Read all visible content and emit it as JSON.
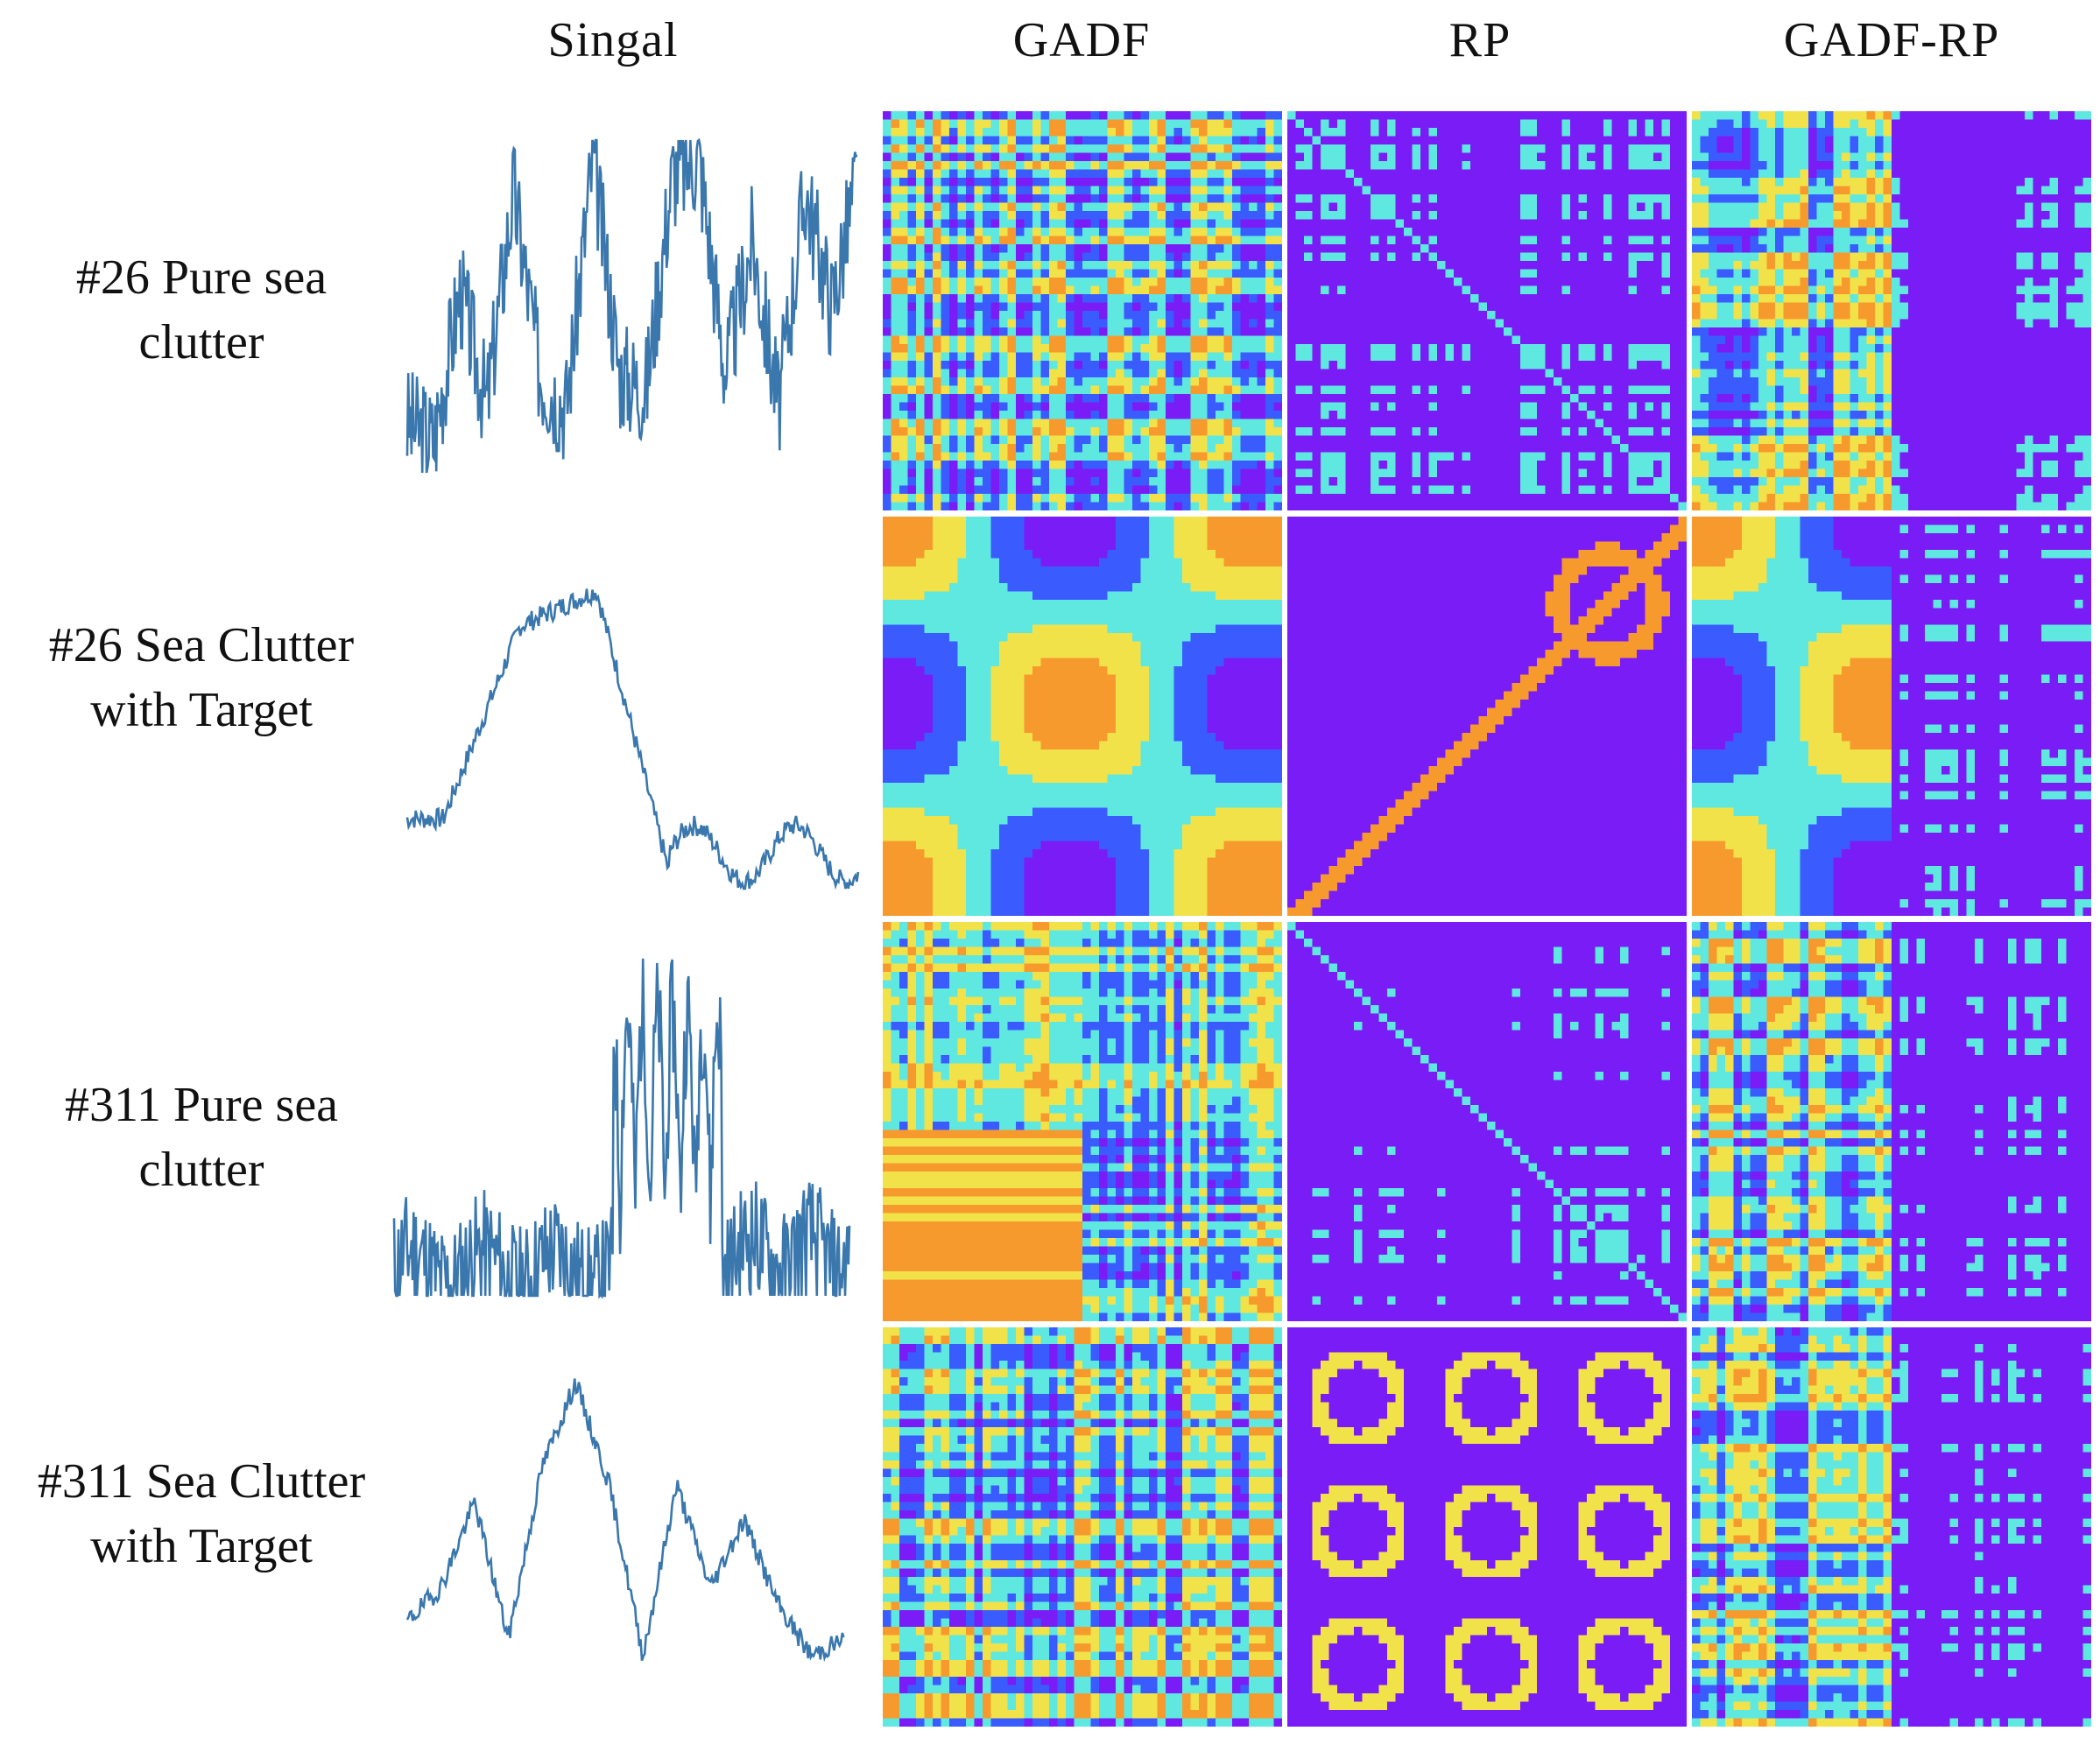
{
  "columns": {
    "signal": "Singal",
    "gadf": "GADF",
    "rp": "RP",
    "gadf_rp": "GADF-RP"
  },
  "rows": [
    {
      "line1": "#26 Pure sea",
      "line2": "clutter",
      "kind": "noisy",
      "seed": 3
    },
    {
      "line1": "#26 Sea Clutter",
      "line2": "with Target",
      "kind": "smooth",
      "seed": 7
    },
    {
      "line1": "#311 Pure sea",
      "line2": "clutter",
      "kind": "noisy",
      "seed": 11
    },
    {
      "line1": "#311 Sea Clutter",
      "line2": "with Target",
      "kind": "smooth",
      "seed": 19
    }
  ],
  "colors": {
    "signal_line": "#3a77ad",
    "purple": "#7a1cf6",
    "blue": "#3a5cff",
    "cyan": "#5fe8e0",
    "yellow": "#f2e24a",
    "orange": "#f79a2e",
    "red": "#f0201c"
  },
  "icons": [
    "signal-plot",
    "gadf-image",
    "rp-image",
    "gadf-rp-image"
  ]
}
